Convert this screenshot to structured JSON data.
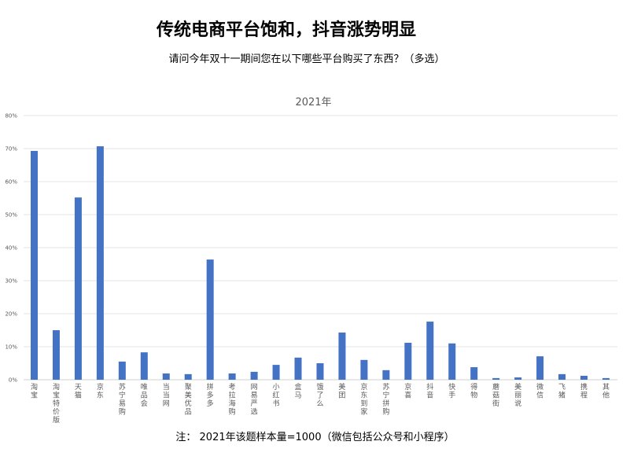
{
  "title": "传统电商平台饱和，抖音涨势明显",
  "subtitle": "请问今年双十一期间您在以下哪些平台购买了东西？（多选）",
  "note": "注：  2021年该题样本量=1000（微信包括公众号和小程序）",
  "chart_data": {
    "type": "bar",
    "title": "2021年",
    "xlabel": "",
    "ylabel": "",
    "ylim": [
      0,
      80
    ],
    "yticks": [
      "0%",
      "10%",
      "20%",
      "30%",
      "40%",
      "50%",
      "60%",
      "70%",
      "80%"
    ],
    "grid": true,
    "bar_color": "#4472C4",
    "categories": [
      "淘宝",
      "淘宝特价版",
      "天猫",
      "京东",
      "苏宁易购",
      "唯品会",
      "当当网",
      "聚美优品",
      "拼多多",
      "考拉海购",
      "网易严选",
      "小红书",
      "盒马",
      "饿了么",
      "美团",
      "京东到家",
      "苏宁拼购",
      "京喜",
      "抖音",
      "快手",
      "得物",
      "蘑菇街",
      "美丽说",
      "微信",
      "飞猪",
      "携程",
      "其他"
    ],
    "values": [
      69.3,
      15.0,
      55.2,
      70.7,
      5.5,
      8.3,
      1.9,
      1.7,
      36.4,
      1.9,
      2.4,
      4.5,
      6.7,
      5.0,
      14.3,
      6.0,
      2.9,
      11.2,
      17.6,
      11.0,
      3.8,
      0.5,
      0.7,
      7.1,
      1.7,
      1.2,
      0.5
    ]
  }
}
